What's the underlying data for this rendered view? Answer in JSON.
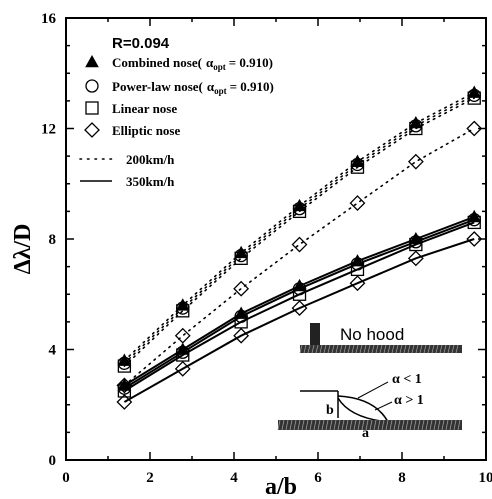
{
  "chart_data": {
    "type": "line",
    "title": "",
    "xlabel": "a/b",
    "ylabel": "Δλ/D",
    "xlim": [
      0,
      10
    ],
    "ylim": [
      0,
      16
    ],
    "xticks": [
      0,
      2,
      4,
      6,
      8,
      10
    ],
    "yticks": [
      0,
      4,
      8,
      12,
      16
    ],
    "grid": false,
    "legend_position": "top-left",
    "annotation": "R=0.094",
    "legend": {
      "markers": [
        {
          "symbol": "filled-triangle",
          "label_main": "Combined nose(",
          "label_alpha": "α",
          "label_sub": "opt",
          "label_eq": "= 0.910)"
        },
        {
          "symbol": "open-circle",
          "label_main": "Power-law nose(",
          "label_alpha": "α",
          "label_sub": "opt",
          "label_eq": "= 0.910)"
        },
        {
          "symbol": "open-square",
          "label_main": "Linear nose",
          "label_alpha": "",
          "label_sub": "",
          "label_eq": ""
        },
        {
          "symbol": "open-diamond",
          "label_main": "Elliptic nose",
          "label_alpha": "",
          "label_sub": "",
          "label_eq": ""
        }
      ],
      "lines": [
        {
          "style": "dotted",
          "label": "200km/h"
        },
        {
          "style": "solid",
          "label": "350km/h"
        }
      ]
    },
    "x": [
      1.39,
      2.78,
      4.17,
      5.56,
      6.94,
      8.33,
      9.72
    ],
    "series": [
      {
        "name": "Combined nose 200km/h",
        "marker": "filled-triangle",
        "speed": "200km/h",
        "values": [
          3.6,
          5.6,
          7.5,
          9.2,
          10.8,
          12.2,
          13.3
        ]
      },
      {
        "name": "Power-law nose 200km/h",
        "marker": "open-circle",
        "speed": "200km/h",
        "values": [
          3.5,
          5.5,
          7.4,
          9.1,
          10.7,
          12.1,
          13.2
        ]
      },
      {
        "name": "Linear nose 200km/h",
        "marker": "open-square",
        "speed": "200km/h",
        "values": [
          3.4,
          5.4,
          7.3,
          9.0,
          10.6,
          12.0,
          13.1
        ]
      },
      {
        "name": "Elliptic nose 200km/h",
        "marker": "open-diamond",
        "speed": "200km/h",
        "values": [
          2.7,
          4.5,
          6.2,
          7.8,
          9.3,
          10.8,
          12.0
        ]
      },
      {
        "name": "Combined nose 350km/h",
        "marker": "filled-triangle",
        "speed": "350km/h",
        "values": [
          2.7,
          4.0,
          5.3,
          6.3,
          7.2,
          8.0,
          8.8
        ]
      },
      {
        "name": "Power-law nose 350km/h",
        "marker": "open-circle",
        "speed": "350km/h",
        "values": [
          2.6,
          3.9,
          5.2,
          6.2,
          7.1,
          7.9,
          8.7
        ]
      },
      {
        "name": "Linear nose 350km/h",
        "marker": "open-square",
        "speed": "350km/h",
        "values": [
          2.5,
          3.8,
          5.0,
          6.0,
          6.9,
          7.8,
          8.6
        ]
      },
      {
        "name": "Elliptic nose 350km/h",
        "marker": "open-diamond",
        "speed": "350km/h",
        "values": [
          2.1,
          3.3,
          4.5,
          5.5,
          6.4,
          7.3,
          8.0
        ]
      }
    ],
    "inset": {
      "no_hood_label": "No hood",
      "alpha_lt": "α < 1",
      "alpha_gt": "α > 1",
      "b_label": "b",
      "a_label": "a"
    }
  }
}
